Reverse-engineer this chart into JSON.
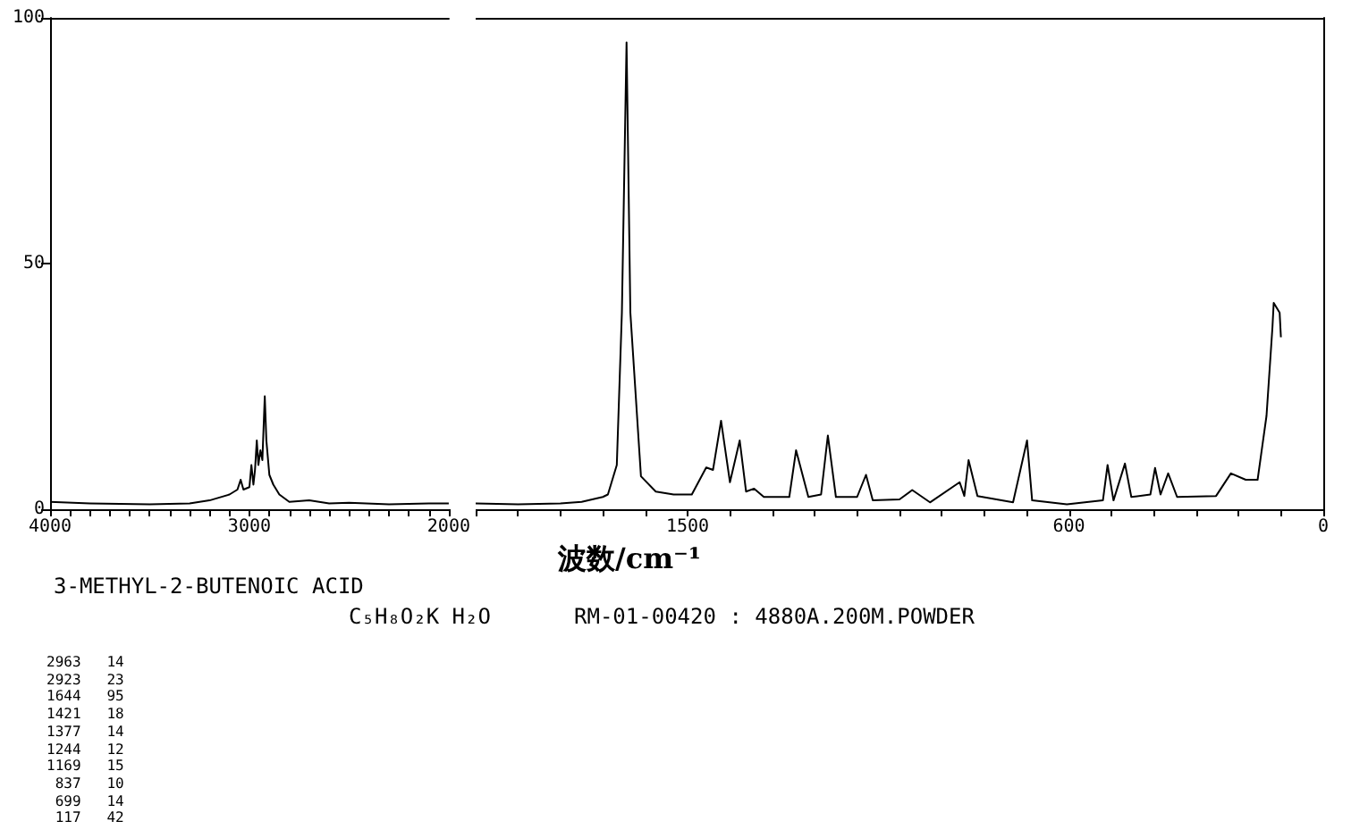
{
  "chart_data": [
    {
      "type": "line",
      "title": "3-METHYL-2-BUTENOIC ACID",
      "annotations": [
        "C₅H₈O₂K H₂O",
        "RM-01-00420 : 4880A.200M.POWDER",
        "2963   14",
        "2923   23",
        "1644   95",
        "1421   18",
        "1377   14",
        "1244   12",
        "1169   15",
        " 837   10",
        " 699   14",
        " 117   42"
      ],
      "series": [
        {
          "color": "#000000",
          "x": [
            4000,
            3800,
            3500,
            3300,
            3200,
            3100,
            3060,
            3044,
            3030,
            3000,
            2990,
            2980,
            2972,
            2963,
            2955,
            2945,
            2935,
            2923,
            2915,
            2900,
            2880,
            2850,
            2800,
            2700,
            2600,
            2500,
            2300,
            2100,
            2000
          ],
          "values": [
            1.5,
            1.2,
            1,
            1.2,
            1.8,
            3,
            4,
            6,
            4,
            4.5,
            9,
            5,
            8,
            14,
            9,
            12,
            10,
            23,
            14,
            7,
            5,
            3,
            1.5,
            1.8,
            1.2,
            1.3,
            1,
            1.2,
            1.2
          ]
        }
      ],
      "xlim": [
        4000,
        2000
      ],
      "xticks": [
        4000,
        {
          "value": 3900,
          "label": null
        },
        {
          "value": 3800,
          "label": null
        },
        {
          "value": 3700,
          "label": null
        },
        {
          "value": 3600,
          "label": null
        },
        {
          "value": 3500,
          "label": null
        },
        {
          "value": 3400,
          "label": null
        },
        {
          "value": 3300,
          "label": null
        },
        {
          "value": 3200,
          "label": null
        },
        {
          "value": 3100,
          "label": null
        },
        3000,
        {
          "value": 2900,
          "label": null
        },
        {
          "value": 2800,
          "label": null
        },
        {
          "value": 2700,
          "label": null
        },
        {
          "value": 2600,
          "label": null
        },
        {
          "value": 2500,
          "label": null
        },
        {
          "value": 2400,
          "label": null
        },
        {
          "value": 2300,
          "label": null
        },
        {
          "value": 2200,
          "label": null
        },
        {
          "value": 2100,
          "label": null
        },
        2000
      ],
      "ylim": [
        0,
        100
      ],
      "yticks": [
        0,
        50,
        100
      ],
      "grid": false,
      "marker": "none",
      "line_style": "solid"
    },
    {
      "type": "line",
      "xlabel": "波数/cm⁻¹",
      "series": [
        {
          "color": "#000000",
          "x": [
            2000,
            1900,
            1800,
            1750,
            1700,
            1688,
            1667,
            1655,
            1644,
            1635,
            1610,
            1575,
            1533,
            1490,
            1456,
            1440,
            1421,
            1400,
            1377,
            1362,
            1343,
            1320,
            1260,
            1244,
            1215,
            1185,
            1169,
            1150,
            1100,
            1079,
            1063,
            1000,
            970,
            928,
            858,
            847,
            837,
            816,
            732,
            699,
            687,
            605,
            520,
            509,
            495,
            468,
            453,
            408,
            397,
            384,
            366,
            345,
            253,
            218,
            183,
            155,
            134,
            120,
            117,
            103,
            100
          ],
          "values": [
            1.2,
            1,
            1.2,
            1.5,
            2.5,
            3,
            9,
            40,
            95,
            40,
            6.7,
            3.6,
            3,
            3,
            8.5,
            8,
            18,
            5.5,
            14,
            3.6,
            4.2,
            2.5,
            2.5,
            12,
            2.5,
            3,
            15,
            2.5,
            2.5,
            7,
            1.8,
            2,
            3.9,
            1.4,
            5.5,
            2.7,
            10,
            2.7,
            1.4,
            14,
            1.8,
            1,
            1.8,
            9,
            1.8,
            9.3,
            2.5,
            3,
            8.4,
            3,
            7.3,
            2.5,
            2.7,
            7.3,
            6,
            6,
            19,
            37,
            42,
            40,
            35
          ]
        }
      ],
      "xlim": [
        2000,
        0
      ],
      "xticks": [
        {
          "value": 2000,
          "label": null
        },
        {
          "value": 1900,
          "label": null
        },
        {
          "value": 1800,
          "label": null
        },
        {
          "value": 1700,
          "label": null
        },
        {
          "value": 1600,
          "label": null
        },
        1500,
        {
          "value": 1400,
          "label": null
        },
        {
          "value": 1300,
          "label": null
        },
        {
          "value": 1200,
          "label": null
        },
        {
          "value": 1100,
          "label": null
        },
        {
          "value": 1000,
          "label": null
        },
        {
          "value": 900,
          "label": null
        },
        {
          "value": 800,
          "label": null
        },
        {
          "value": 700,
          "label": null
        },
        600,
        {
          "value": 500,
          "label": null
        },
        {
          "value": 400,
          "label": null
        },
        {
          "value": 300,
          "label": null
        },
        {
          "value": 200,
          "label": null
        },
        {
          "value": 100,
          "label": null
        },
        0
      ],
      "ylim": [
        0,
        100
      ],
      "grid": false,
      "marker": "none",
      "line_style": "solid"
    }
  ]
}
